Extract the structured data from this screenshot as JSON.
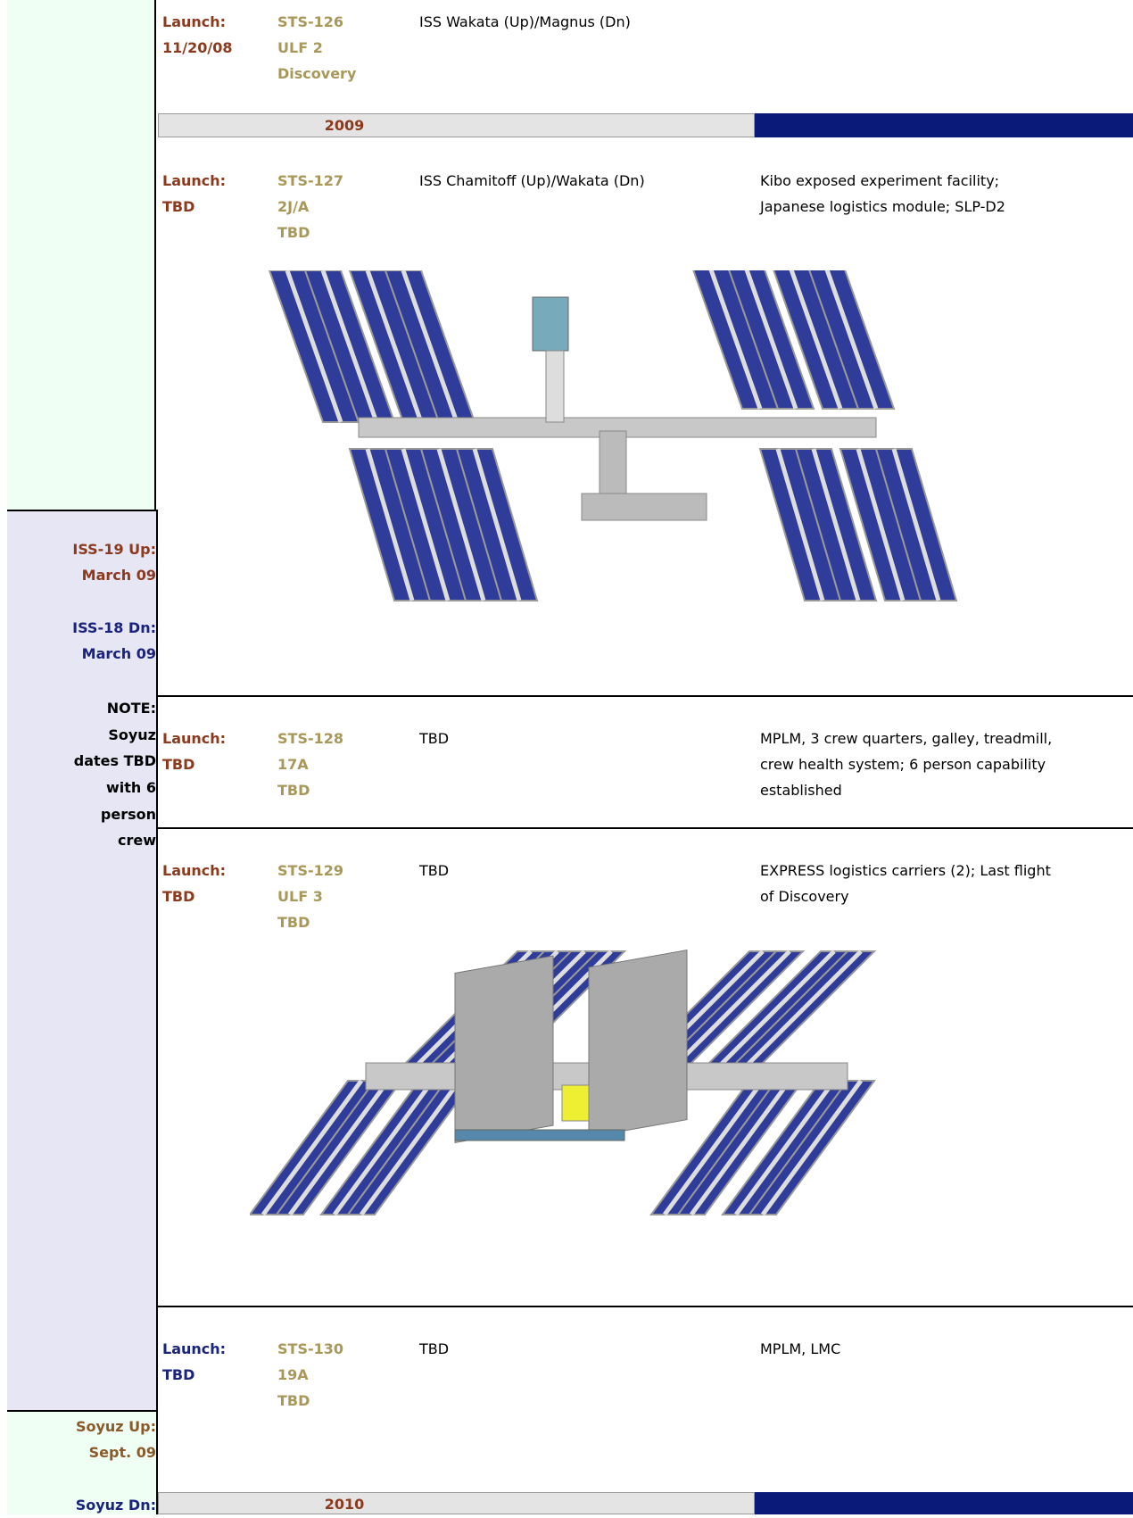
{
  "left": {
    "iss19_up": [
      "ISS-19 Up:",
      "March 09"
    ],
    "iss18_dn": [
      "ISS-18 Dn:",
      "March 09"
    ],
    "note": [
      "NOTE:",
      "Soyuz",
      "dates TBD",
      "with 6",
      "person",
      "crew"
    ],
    "soyuz_up": [
      "Soyuz Up:",
      "Sept. 09"
    ],
    "soyuz_dn": [
      "Soyuz Dn:"
    ]
  },
  "years": [
    "2009",
    "2010"
  ],
  "flights": [
    {
      "launch": "Launch:",
      "date": "11/20/08",
      "mission": [
        "STS-126",
        "ULF 2",
        "Discovery"
      ],
      "crew": "ISS Wakata (Up)/Magnus (Dn)"
    },
    {
      "launch": "Launch:",
      "date": "TBD",
      "mission": [
        "STS-127",
        "2J/A",
        "TBD"
      ],
      "crew": "ISS Chamitoff (Up)/Wakata (Dn)",
      "payload": "Kibo exposed experiment facility; Japanese logistics module; SLP-D2"
    },
    {
      "launch": "Launch:",
      "date": "TBD",
      "mission": [
        "STS-128",
        "17A",
        "TBD"
      ],
      "crew": "TBD",
      "payload": "MPLM, 3 crew quarters, galley, treadmill, crew health system; 6 person capability established"
    },
    {
      "launch": "Launch:",
      "date": "TBD",
      "mission": [
        "STS-129",
        "ULF 3",
        "TBD"
      ],
      "crew": "TBD",
      "payload": "EXPRESS logistics carriers (2); Last flight of Discovery"
    },
    {
      "launch": "Launch:",
      "date": "TBD",
      "mission": [
        "STS-130",
        "19A",
        "TBD"
      ],
      "crew": "TBD",
      "payload": "MPLM, LMC"
    }
  ]
}
